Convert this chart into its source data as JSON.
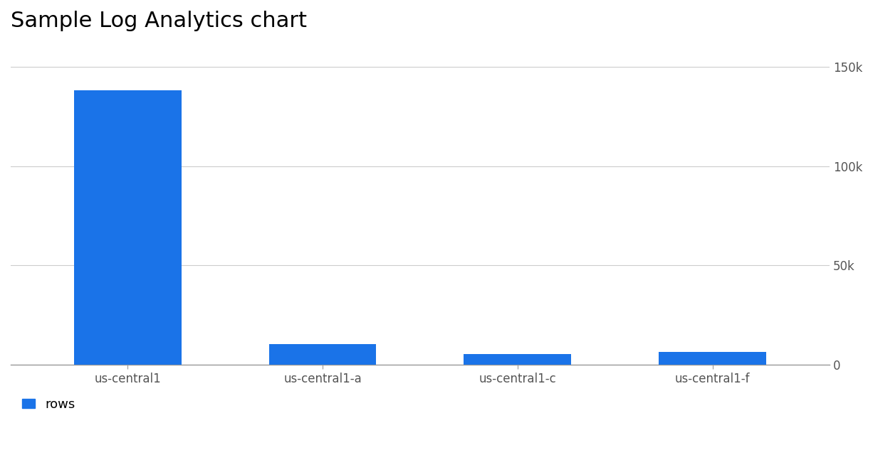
{
  "title": "Sample Log Analytics chart",
  "categories": [
    "us-central1",
    "us-central1-a",
    "us-central1-c",
    "us-central1-f"
  ],
  "values": [
    138000,
    10500,
    5500,
    6500
  ],
  "bar_color": "#1a73e8",
  "background_color": "#ffffff",
  "ylim": [
    0,
    160000
  ],
  "yticks": [
    0,
    50000,
    100000,
    150000
  ],
  "ytick_labels": [
    "0",
    "50k",
    "100k",
    "150k"
  ],
  "title_fontsize": 22,
  "tick_fontsize": 12,
  "legend_label": "rows",
  "legend_color": "#1a73e8",
  "grid_color": "#cccccc",
  "axis_color": "#999999",
  "tick_color": "#555555"
}
